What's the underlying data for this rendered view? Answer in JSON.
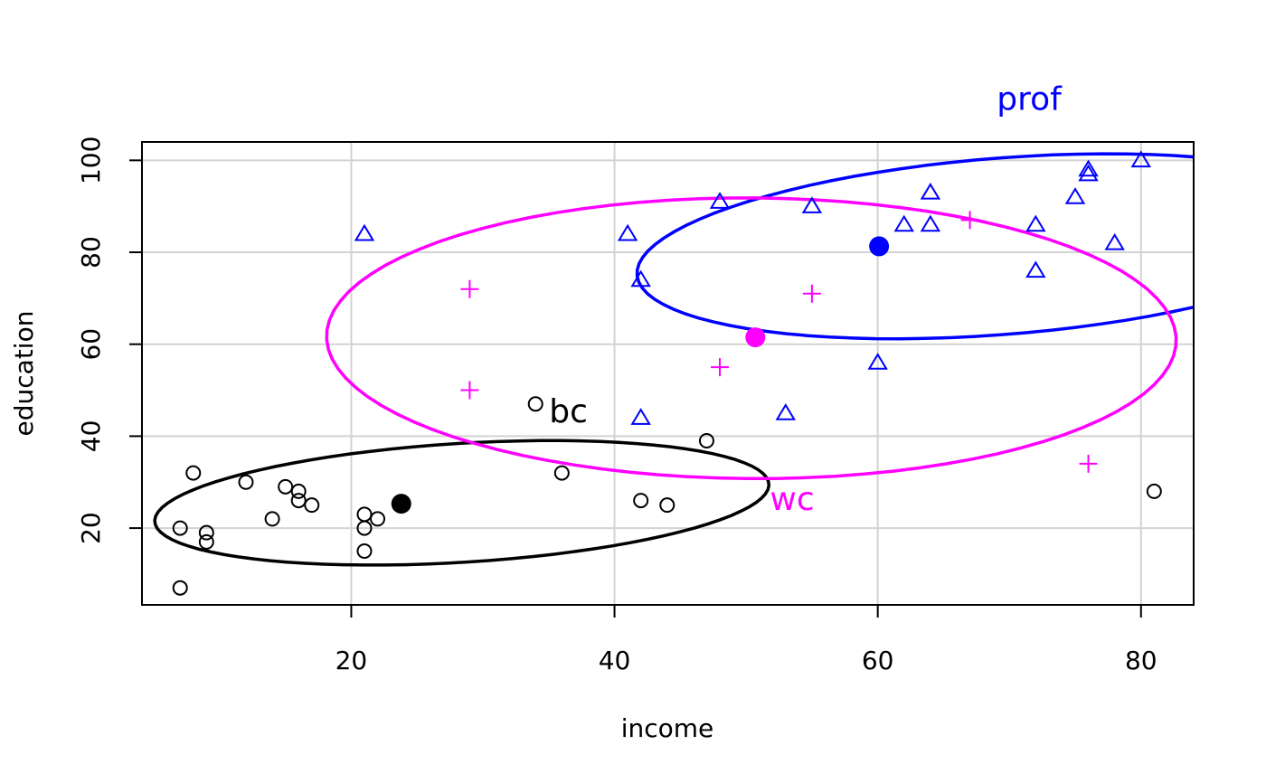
{
  "chart_data": {
    "type": "scatter",
    "title": "",
    "xlabel": "income",
    "ylabel": "education",
    "xlim": [
      4.1,
      84
    ],
    "ylim": [
      3.3,
      104
    ],
    "xticks": [
      20,
      40,
      60,
      80
    ],
    "yticks": [
      20,
      40,
      60,
      80,
      100
    ],
    "grid": true,
    "legend": "none",
    "series": [
      {
        "name": "bc",
        "color": "#000000",
        "marker": "circle",
        "points": [
          [
            7,
            7
          ],
          [
            7,
            20
          ],
          [
            8,
            32
          ],
          [
            9,
            19
          ],
          [
            9,
            17
          ],
          [
            12,
            30
          ],
          [
            14,
            22
          ],
          [
            15,
            29
          ],
          [
            16,
            26
          ],
          [
            16,
            28
          ],
          [
            17,
            25
          ],
          [
            21,
            15
          ],
          [
            21,
            20
          ],
          [
            21,
            23
          ],
          [
            22,
            22
          ],
          [
            34,
            47
          ],
          [
            36,
            32
          ],
          [
            42,
            26
          ],
          [
            44,
            25
          ],
          [
            47,
            39
          ],
          [
            81,
            28
          ]
        ],
        "mean": [
          23.8,
          25.3
        ],
        "ellipse": {
          "center": [
            28.4,
            25.5
          ],
          "rx": 23.8,
          "ry": 12.7,
          "angle": 13.5
        }
      },
      {
        "name": "prof",
        "color": "#0000ff",
        "marker": "triangle",
        "points": [
          [
            21,
            84
          ],
          [
            41,
            84
          ],
          [
            42,
            74
          ],
          [
            42,
            44
          ],
          [
            48,
            91
          ],
          [
            53,
            45
          ],
          [
            55,
            90
          ],
          [
            60,
            56
          ],
          [
            62,
            86
          ],
          [
            64,
            86
          ],
          [
            64,
            93
          ],
          [
            72,
            86
          ],
          [
            72,
            76
          ],
          [
            75,
            92
          ],
          [
            76,
            98
          ],
          [
            76,
            97
          ],
          [
            78,
            82
          ],
          [
            80,
            100
          ]
        ],
        "mean": [
          60.1,
          81.3
        ],
        "ellipse": {
          "center": [
            69.4,
            81.3
          ],
          "rx": 28.8,
          "ry": 18.5,
          "angle": 21
        }
      },
      {
        "name": "wc",
        "color": "#ff00ff",
        "marker": "plus",
        "points": [
          [
            29,
            72
          ],
          [
            29,
            50
          ],
          [
            48,
            55
          ],
          [
            55,
            71
          ],
          [
            67,
            87
          ],
          [
            76,
            34
          ]
        ],
        "mean": [
          50.7,
          61.5
        ],
        "ellipse": {
          "center": [
            50.4,
            61.3
          ],
          "rx": 32.3,
          "ry": 30.5,
          "angle": -7
        }
      }
    ],
    "group_labels": [
      {
        "text": "bc",
        "color": "#000000",
        "at": [
          36.5,
          43
        ]
      },
      {
        "text": "wc",
        "color": "#ff00ff",
        "at": [
          53.5,
          24
        ]
      },
      {
        "text": "prof",
        "color": "#0000ff",
        "at": [
          71.5,
          111
        ]
      }
    ]
  }
}
